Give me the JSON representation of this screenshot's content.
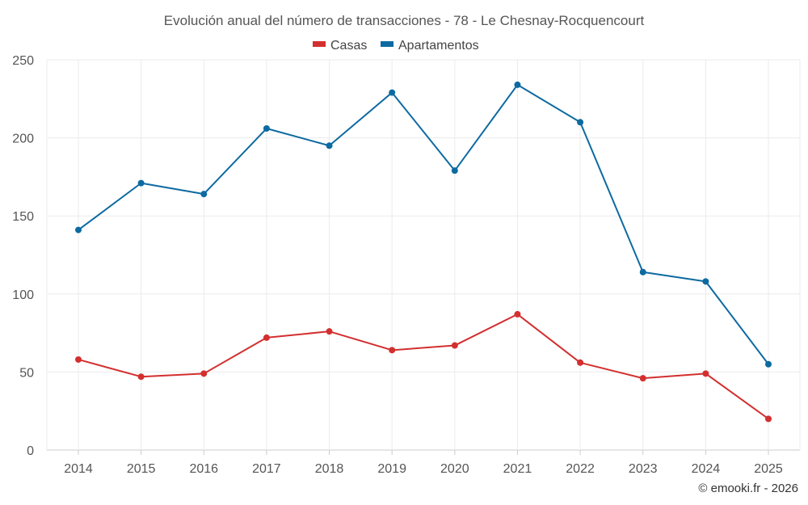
{
  "chart_data": {
    "type": "line",
    "title": "Evolución anual del número de transacciones - 78 - Le Chesnay-Rocquencourt",
    "categories": [
      "2014",
      "2015",
      "2016",
      "2017",
      "2018",
      "2019",
      "2020",
      "2021",
      "2022",
      "2023",
      "2024",
      "2025"
    ],
    "series": [
      {
        "name": "Casas",
        "color": "#d32f2f",
        "values": [
          58,
          47,
          49,
          72,
          76,
          64,
          67,
          87,
          56,
          46,
          49,
          20
        ]
      },
      {
        "name": "Apartamentos",
        "color": "#0d6aa1",
        "values": [
          141,
          171,
          164,
          206,
          195,
          229,
          179,
          234,
          210,
          114,
          108,
          55
        ]
      }
    ],
    "ylim": [
      0,
      250
    ],
    "yticks": [
      0,
      50,
      100,
      150,
      200,
      250
    ],
    "grid": true,
    "legend": "top-center",
    "credit": "© emooki.fr - 2026"
  }
}
